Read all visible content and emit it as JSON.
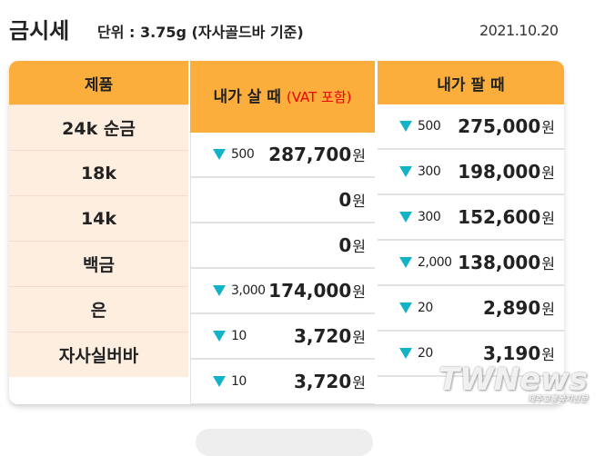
{
  "header": {
    "title": "금시세",
    "unit": "단위 : 3.75g (자사골드바 기준)",
    "date": "2021.10.20"
  },
  "table": {
    "headers": {
      "product": "제품",
      "buy": "내가 살 때",
      "buy_note": "(VAT 포함)",
      "sell": "내가 팔 때"
    },
    "products": [
      "24k 순금",
      "18k",
      "14k",
      "백금",
      "은",
      "자사실버바"
    ],
    "buy": [
      {
        "change": "500",
        "price": "287,700",
        "unit": "원",
        "down": true
      },
      {
        "change": "",
        "price": "0",
        "unit": "원",
        "down": false
      },
      {
        "change": "",
        "price": "0",
        "unit": "원",
        "down": false
      },
      {
        "change": "3,000",
        "price": "174,000",
        "unit": "원",
        "down": true
      },
      {
        "change": "10",
        "price": "3,720",
        "unit": "원",
        "down": true
      },
      {
        "change": "10",
        "price": "3,720",
        "unit": "원",
        "down": true
      }
    ],
    "sell": [
      {
        "change": "500",
        "price": "275,000",
        "unit": "원",
        "down": true
      },
      {
        "change": "300",
        "price": "198,000",
        "unit": "원",
        "down": true
      },
      {
        "change": "300",
        "price": "152,600",
        "unit": "원",
        "down": true
      },
      {
        "change": "2,000",
        "price": "138,000",
        "unit": "원",
        "down": true
      },
      {
        "change": "20",
        "price": "2,890",
        "unit": "원",
        "down": true
      },
      {
        "change": "20",
        "price": "3,190",
        "unit": "원",
        "down": true
      }
    ]
  },
  "colors": {
    "header_bg": "#fbae3c",
    "product_bg": "#fdeee0",
    "down_arrow": "#12b3c7",
    "vat_note": "#ee0000"
  },
  "watermark": {
    "logo": "TWNews",
    "sub": "제주교통복지신문"
  }
}
